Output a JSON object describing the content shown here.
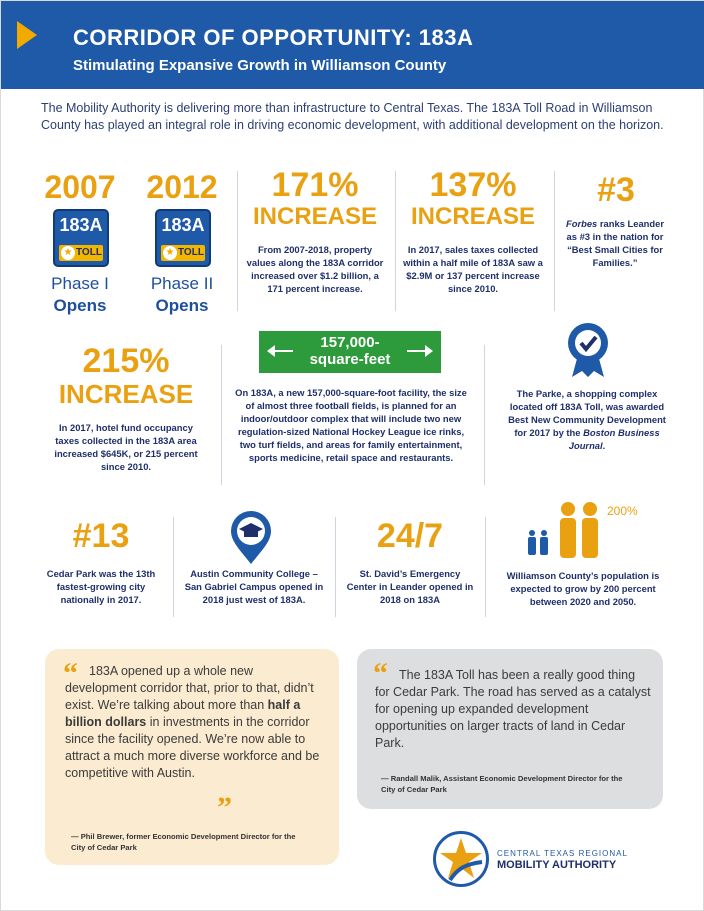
{
  "header": {
    "title": "CORRIDOR OF OPPORTUNITY: 183A",
    "subtitle": "Stimulating Expansive Growth in Williamson County"
  },
  "intro": "The Mobility Authority is delivering more than infrastructure to Central Texas. The 183A Toll Road in Williamson County has played an integral role in driving economic development, with additional development on the horizon.",
  "row1": {
    "phase1": {
      "year": "2007",
      "sign_num": "183A",
      "sign_toll": "TOLL",
      "line1": "Phase I",
      "line2": "Opens"
    },
    "phase2": {
      "year": "2012",
      "sign_num": "183A",
      "sign_toll": "TOLL",
      "line1": "Phase II",
      "line2": "Opens"
    },
    "stat171": {
      "big": "171%",
      "big2": "INCREASE",
      "text": "From 2007-2018, property values along the 183A corridor increased over $1.2 billion, a 171 percent increase."
    },
    "stat137": {
      "big": "137%",
      "big2": "INCREASE",
      "text": "In 2017, sales taxes collected within a half mile of 183A saw a $2.9M or 137 percent increase since 2010."
    },
    "rank3": {
      "big": "#3",
      "forbes": "Forbes",
      "text": " ranks Leander as #3 in the nation for “Best Small Cities for Families.”"
    }
  },
  "row2": {
    "stat215": {
      "big": "215%",
      "big2": "INCREASE",
      "text": "In 2017, hotel fund occupancy taxes collected in the 183A area increased $645K, or 215 percent since 2010."
    },
    "facility": {
      "box": "157,000-square-feet",
      "text": "On 183A, a new 157,000-square-foot facility, the size of almost three football fields, is planned for an indoor/outdoor complex that will include two new regulation-sized National Hockey League ice rinks, two turf fields, and areas for family entertainment, sports medicine, retail space and restaurants."
    },
    "parke": {
      "text": "The Parke, a shopping complex located off 183A Toll, was awarded Best New Community Development for 2017 by the ",
      "journal": "Boston Business Journal",
      "end": "."
    }
  },
  "row3": {
    "rank13": {
      "big": "#13",
      "text": "Cedar Park was the 13th fastest-growing city nationally in 2017."
    },
    "acc": {
      "text": "Austin Community College – San Gabriel Campus opened in 2018 just west of 183A."
    },
    "stdavid": {
      "big": "24/7",
      "text": "St. David’s Emergency Center in Leander opened in 2018 on 183A"
    },
    "population": {
      "pct": "200%",
      "text": "Williamson County’s population is expected to grow by 200 percent between 2020 and 2050."
    }
  },
  "quotes": {
    "left": {
      "part1": "183A opened up a whole new development corridor that, prior to that, didn’t exist. We’re talking about more than ",
      "emph": "half a billion dollars",
      "part2": " in investments in the corridor since the facility opened. We’re now able to attract a much more diverse workforce and be competitive with Austin.",
      "attr": "— Phil Brewer, former Economic Development Director for the City of Cedar Park"
    },
    "right": {
      "text": "The 183A Toll has been a really good thing for Cedar Park. The road has served as a catalyst for opening up expanded development opportunities on larger tracts of land in Cedar Park.",
      "attr": "— Randall Malik, Assistant Economic Development Director for the City of Cedar Park"
    }
  },
  "logo": {
    "top": "CENTRAL TEXAS REGIONAL",
    "bottom": "MOBILITY AUTHORITY"
  },
  "colors": {
    "blue": "#1f5aa8",
    "gold": "#e9a112",
    "green": "#2d9a3c",
    "quote_left_bg": "#fbebd0",
    "quote_right_bg": "#dddedf"
  }
}
